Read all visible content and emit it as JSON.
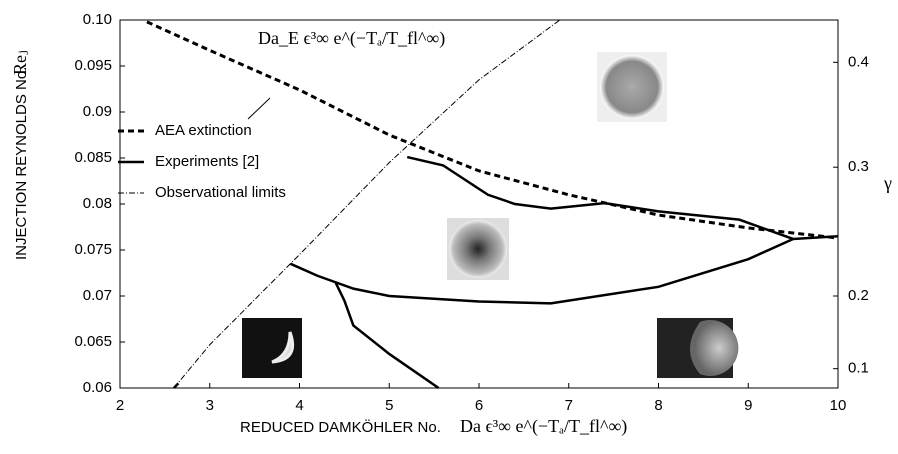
{
  "chart_data": {
    "type": "line",
    "xlabel": "REDUCED  DAMKÖHLER No.",
    "xlabel_math": "Da ϵ³∞ e^(−Tₐ/T_fl^∞)",
    "ylabel": "INJECTION REYNOLDS No.",
    "ylabel_math": "Reⱼ",
    "y2label": "γ",
    "annotation": "Da_E ϵ³∞ e^(−Tₐ/T_fl^∞)",
    "xlim": [
      2,
      10
    ],
    "xticks": [
      2,
      3,
      4,
      5,
      6,
      7,
      8,
      9,
      10
    ],
    "ylim": [
      0.06,
      0.1
    ],
    "yticks": [
      0.06,
      0.065,
      0.07,
      0.075,
      0.08,
      0.085,
      0.09,
      0.095,
      {
        "value": 0.1,
        "label": "0.10"
      }
    ],
    "y2ticks": [
      0.1,
      0.2,
      0.3,
      0.4
    ],
    "y2tick_positions": [
      0.0621,
      0.07,
      0.084,
      0.0954
    ],
    "series": [
      {
        "name": "AEA extinction",
        "color": "#000000",
        "dash": "6,4",
        "width": 3,
        "x": [
          2.3,
          3,
          4,
          5,
          6,
          7,
          8,
          9,
          10
        ],
        "values": [
          0.0998,
          0.0967,
          0.0924,
          0.0875,
          0.0836,
          0.081,
          0.0788,
          0.0774,
          0.0763
        ]
      },
      {
        "name": "Experiments [2]",
        "color": "#000000",
        "dash": "none",
        "width": 2.5,
        "x": [
          5.2,
          5.6,
          6.1,
          6.4,
          6.8,
          7.4,
          8,
          8.9,
          9.5,
          10,
          null,
          3.9,
          4.2,
          4.6,
          5,
          6,
          6.8,
          8,
          9,
          9.5,
          null,
          4.4,
          4.5,
          4.6,
          5,
          5.55,
          null,
          2.6,
          2.65
        ],
        "values": [
          0.0851,
          0.0842,
          0.081,
          0.08,
          0.0795,
          0.0801,
          0.0792,
          0.0783,
          0.0762,
          0.0765,
          null,
          0.0735,
          0.0722,
          0.0708,
          0.07,
          0.0694,
          0.0692,
          0.071,
          0.074,
          0.0762,
          null,
          0.0715,
          0.0695,
          0.0668,
          0.0637,
          0.06,
          null,
          0.06,
          0.0605
        ]
      },
      {
        "name": "Observational limits",
        "color": "#000000",
        "dash": "6,2,1,2",
        "width": 1,
        "x": [
          2.6,
          3,
          4,
          5,
          6,
          6.9
        ],
        "values": [
          0.06,
          0.0647,
          0.0745,
          0.0845,
          0.0935,
          0.1
        ]
      }
    ],
    "legend": "left"
  }
}
